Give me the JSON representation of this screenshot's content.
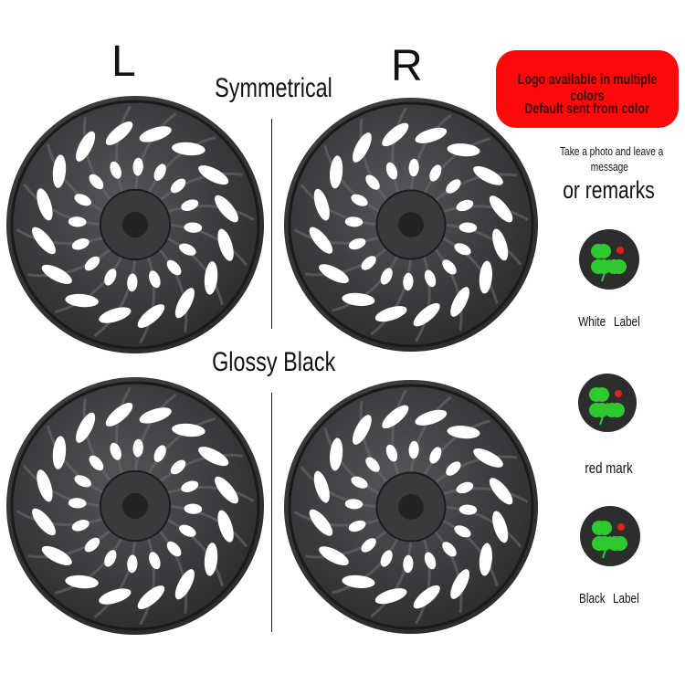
{
  "labels": {
    "left": "L",
    "right": "R",
    "symmetrical": "Symmetrical",
    "glossy_black": "Glossy Black"
  },
  "banner": {
    "line1": "Logo available in multiple colors",
    "line2": "Default sent from color",
    "color": "#ff0a0a"
  },
  "note": {
    "line1": "Take a photo and leave a",
    "line2": "message",
    "remarks": "or remarks"
  },
  "options": [
    {
      "icon": "clover-logo-icon",
      "line1": "White",
      "line2": "Label"
    },
    {
      "icon": "clover-logo-icon",
      "line1": "red mark",
      "line2": ""
    },
    {
      "icon": "clover-logo-icon",
      "line1": "Black",
      "line2": "Label"
    }
  ],
  "colors": {
    "wheel": "#2a2a2c",
    "clover": "#2ec92e",
    "ladybug": "#e0201a"
  }
}
